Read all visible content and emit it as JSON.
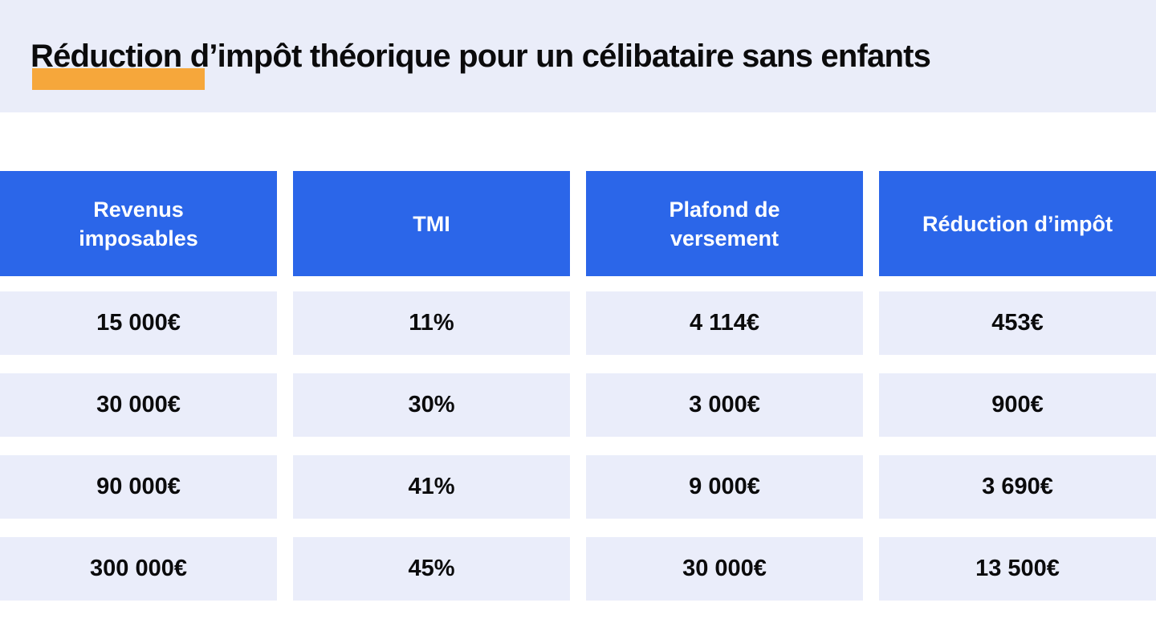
{
  "title": {
    "highlighted": "Réduction",
    "rest": "d’impôt théorique pour un célibataire sans enfants"
  },
  "table": {
    "columns": [
      "Revenus\nimposables",
      "TMI",
      "Plafond de\nversement",
      "Réduction d’impôt"
    ],
    "rows": [
      [
        "15 000€",
        "11%",
        "4 114€",
        "453€"
      ],
      [
        "30 000€",
        "30%",
        "3 000€",
        "900€"
      ],
      [
        "90 000€",
        "41%",
        "9 000€",
        "3 690€"
      ],
      [
        "300 000€",
        "45%",
        "30 000€",
        "13 500€"
      ]
    ]
  },
  "colors": {
    "header_blue": "#2b66e9",
    "row_lavender": "#eaedfa",
    "banner_lavender": "#eaedf9",
    "highlight_orange": "#f6a73b",
    "text_dark": "#0b0b0c",
    "header_text": "#ffffff",
    "page_bg": "#ffffff"
  }
}
